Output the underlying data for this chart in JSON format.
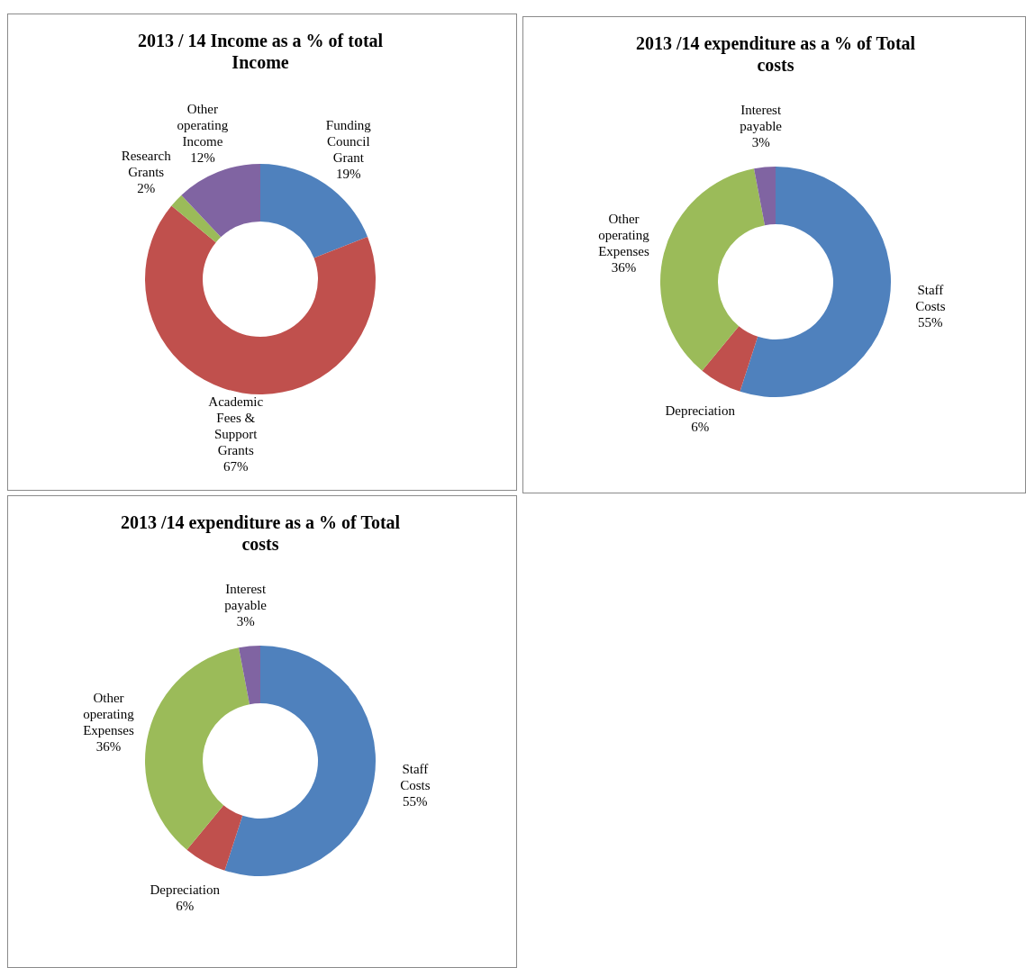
{
  "chart_data": [
    {
      "type": "donut",
      "title": "2013 / 14 Income as a % of total Income",
      "categories": [
        "Funding Council Grant",
        "Academic Fees & Support Grants",
        "Research Grants",
        "Other operating Income"
      ],
      "values": [
        19,
        67,
        2,
        12
      ],
      "value_labels": [
        "19%",
        "67%",
        "2%",
        "12%"
      ],
      "colors": [
        "#4f81bd",
        "#c0504d",
        "#9bbb59",
        "#8064a2"
      ],
      "legend": false
    },
    {
      "type": "donut",
      "title": "2013 /14 expenditure as a % of Total costs",
      "categories": [
        "Staff Costs",
        "Depreciation",
        "Other operating Expenses",
        "Interest payable"
      ],
      "values": [
        55,
        6,
        36,
        3
      ],
      "value_labels": [
        "55%",
        "6%",
        "36%",
        "3%"
      ],
      "colors": [
        "#4f81bd",
        "#c0504d",
        "#9bbb59",
        "#8064a2"
      ],
      "legend": false
    },
    {
      "type": "donut",
      "title": "2013 /14 expenditure as a % of Total costs",
      "categories": [
        "Staff Costs",
        "Depreciation",
        "Other operating Expenses",
        "Interest payable"
      ],
      "values": [
        55,
        6,
        36,
        3
      ],
      "value_labels": [
        "55%",
        "6%",
        "36%",
        "3%"
      ],
      "colors": [
        "#4f81bd",
        "#c0504d",
        "#9bbb59",
        "#8064a2"
      ],
      "legend": false
    }
  ]
}
